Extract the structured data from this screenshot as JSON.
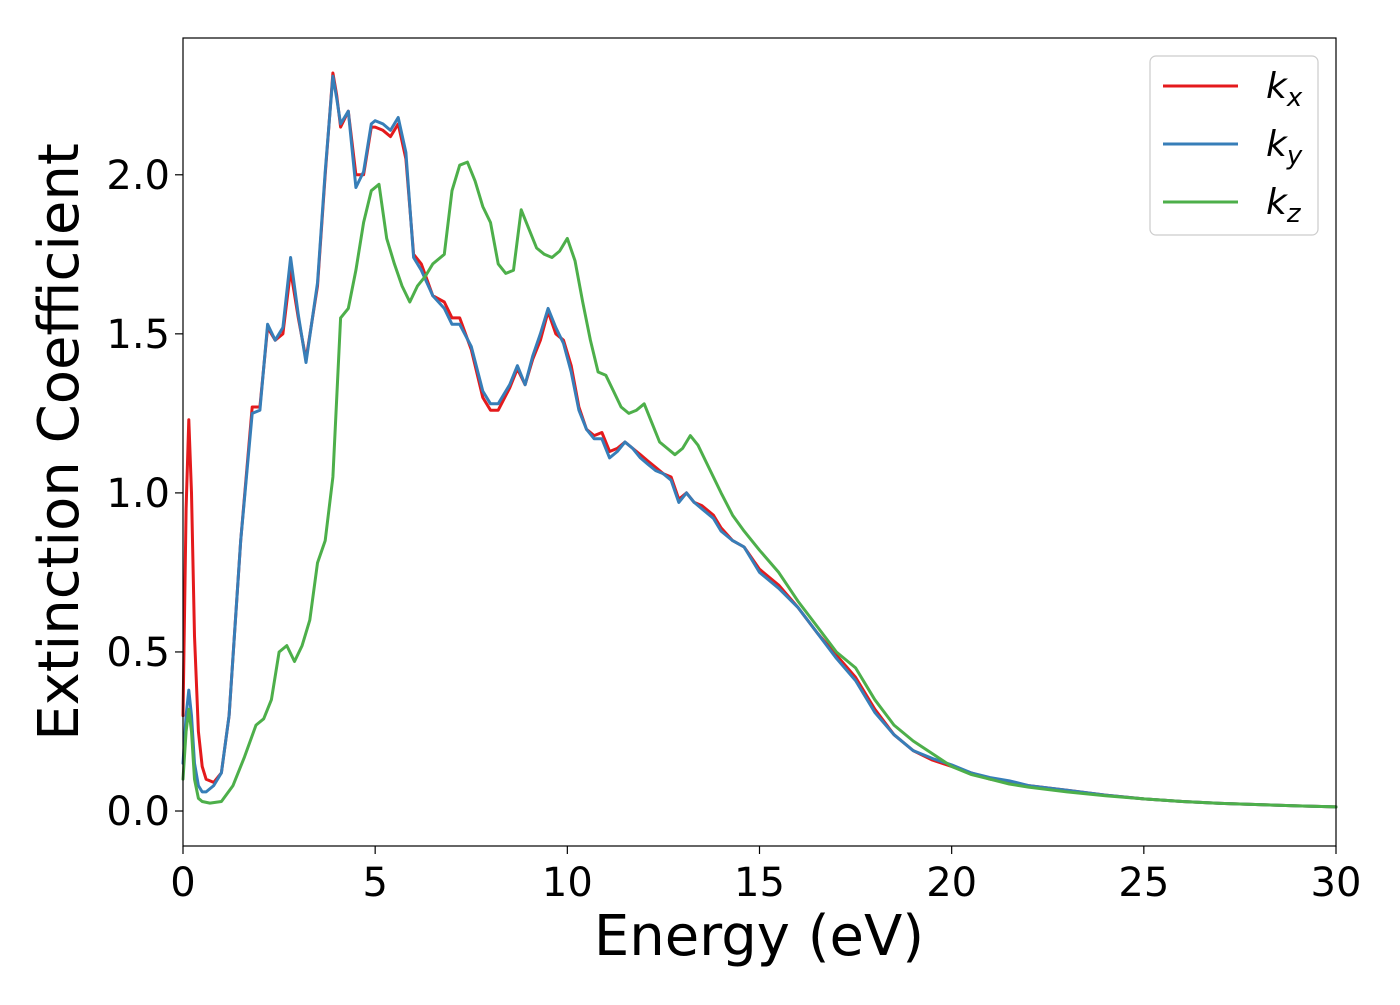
{
  "chart_data": {
    "type": "line",
    "title": "",
    "xlabel": "Energy (eV)",
    "ylabel": "Extinction Coefficient",
    "xlim": [
      0,
      30
    ],
    "ylim": [
      -0.11,
      2.43
    ],
    "xticks": [
      0,
      5,
      10,
      15,
      20,
      25,
      30
    ],
    "xtick_labels": [
      "0",
      "5",
      "10",
      "15",
      "20",
      "25",
      "30"
    ],
    "yticks": [
      0.0,
      0.5,
      1.0,
      1.5,
      2.0
    ],
    "ytick_labels": [
      "0.0",
      "0.5",
      "1.0",
      "1.5",
      "2.0"
    ],
    "grid": false,
    "legend_position": "top-right",
    "series": [
      {
        "name": "kx",
        "legend_main": "k",
        "legend_sub": "x",
        "color": "#e41a1c",
        "x": [
          0.0,
          0.08,
          0.15,
          0.22,
          0.3,
          0.4,
          0.5,
          0.6,
          0.8,
          1.0,
          1.2,
          1.5,
          1.8,
          2.0,
          2.2,
          2.4,
          2.6,
          2.8,
          3.0,
          3.2,
          3.5,
          3.7,
          3.9,
          4.0,
          4.1,
          4.3,
          4.5,
          4.7,
          4.9,
          5.0,
          5.2,
          5.4,
          5.6,
          5.8,
          6.0,
          6.2,
          6.5,
          6.8,
          7.0,
          7.2,
          7.5,
          7.8,
          8.0,
          8.2,
          8.5,
          8.7,
          8.9,
          9.1,
          9.3,
          9.5,
          9.7,
          9.9,
          10.1,
          10.3,
          10.5,
          10.7,
          10.9,
          11.1,
          11.3,
          11.5,
          11.7,
          11.9,
          12.1,
          12.3,
          12.5,
          12.7,
          12.9,
          13.1,
          13.3,
          13.5,
          13.8,
          14.0,
          14.3,
          14.6,
          15.0,
          15.5,
          16.0,
          16.5,
          17.0,
          17.5,
          18.0,
          18.5,
          19.0,
          19.5,
          20.0,
          20.5,
          21.0,
          21.5,
          22.0,
          23.0,
          24.0,
          25.0,
          26.0,
          27.0,
          28.0,
          29.0,
          30.0
        ],
        "y": [
          0.3,
          0.95,
          1.23,
          1.0,
          0.55,
          0.25,
          0.14,
          0.1,
          0.09,
          0.12,
          0.3,
          0.85,
          1.27,
          1.27,
          1.52,
          1.48,
          1.5,
          1.7,
          1.55,
          1.42,
          1.65,
          2.0,
          2.32,
          2.25,
          2.15,
          2.2,
          2.0,
          2.0,
          2.15,
          2.15,
          2.14,
          2.12,
          2.16,
          2.05,
          1.75,
          1.72,
          1.62,
          1.6,
          1.55,
          1.55,
          1.45,
          1.3,
          1.26,
          1.26,
          1.33,
          1.39,
          1.34,
          1.42,
          1.48,
          1.57,
          1.5,
          1.48,
          1.4,
          1.27,
          1.2,
          1.18,
          1.19,
          1.13,
          1.14,
          1.16,
          1.14,
          1.12,
          1.1,
          1.08,
          1.06,
          1.05,
          0.98,
          1.0,
          0.97,
          0.96,
          0.93,
          0.89,
          0.85,
          0.83,
          0.76,
          0.71,
          0.64,
          0.56,
          0.49,
          0.42,
          0.32,
          0.24,
          0.19,
          0.16,
          0.14,
          0.12,
          0.1,
          0.09,
          0.08,
          0.065,
          0.05,
          0.038,
          0.03,
          0.024,
          0.02,
          0.016,
          0.013
        ]
      },
      {
        "name": "ky",
        "legend_main": "k",
        "legend_sub": "y",
        "color": "#377eb8",
        "x": [
          0.0,
          0.08,
          0.15,
          0.22,
          0.3,
          0.4,
          0.5,
          0.6,
          0.8,
          1.0,
          1.2,
          1.5,
          1.8,
          2.0,
          2.2,
          2.4,
          2.6,
          2.8,
          3.0,
          3.2,
          3.5,
          3.7,
          3.9,
          4.0,
          4.1,
          4.3,
          4.5,
          4.7,
          4.9,
          5.0,
          5.2,
          5.4,
          5.6,
          5.8,
          6.0,
          6.2,
          6.5,
          6.8,
          7.0,
          7.2,
          7.5,
          7.8,
          8.0,
          8.2,
          8.5,
          8.7,
          8.9,
          9.1,
          9.3,
          9.5,
          9.7,
          9.9,
          10.1,
          10.3,
          10.5,
          10.7,
          10.9,
          11.1,
          11.3,
          11.5,
          11.7,
          11.9,
          12.1,
          12.3,
          12.5,
          12.7,
          12.9,
          13.1,
          13.3,
          13.5,
          13.8,
          14.0,
          14.3,
          14.6,
          15.0,
          15.5,
          16.0,
          16.5,
          17.0,
          17.5,
          18.0,
          18.5,
          19.0,
          19.5,
          20.0,
          20.5,
          21.0,
          21.5,
          22.0,
          23.0,
          24.0,
          25.0,
          26.0,
          27.0,
          28.0,
          29.0,
          30.0
        ],
        "y": [
          0.15,
          0.3,
          0.38,
          0.3,
          0.15,
          0.08,
          0.06,
          0.06,
          0.08,
          0.12,
          0.3,
          0.85,
          1.25,
          1.26,
          1.53,
          1.48,
          1.52,
          1.74,
          1.56,
          1.41,
          1.66,
          2.01,
          2.31,
          2.24,
          2.16,
          2.2,
          1.96,
          2.01,
          2.16,
          2.17,
          2.16,
          2.14,
          2.18,
          2.07,
          1.74,
          1.7,
          1.62,
          1.58,
          1.53,
          1.53,
          1.46,
          1.32,
          1.28,
          1.28,
          1.34,
          1.4,
          1.34,
          1.43,
          1.5,
          1.58,
          1.52,
          1.47,
          1.38,
          1.26,
          1.2,
          1.17,
          1.17,
          1.11,
          1.13,
          1.16,
          1.14,
          1.11,
          1.09,
          1.07,
          1.06,
          1.04,
          0.97,
          1.0,
          0.97,
          0.95,
          0.92,
          0.88,
          0.85,
          0.83,
          0.75,
          0.7,
          0.64,
          0.56,
          0.48,
          0.41,
          0.31,
          0.24,
          0.19,
          0.165,
          0.145,
          0.12,
          0.105,
          0.095,
          0.08,
          0.065,
          0.05,
          0.038,
          0.03,
          0.024,
          0.02,
          0.016,
          0.013
        ]
      },
      {
        "name": "kz",
        "legend_main": "k",
        "legend_sub": "z",
        "color": "#4daf4a",
        "x": [
          0.0,
          0.08,
          0.15,
          0.22,
          0.3,
          0.4,
          0.5,
          0.7,
          1.0,
          1.3,
          1.6,
          1.9,
          2.1,
          2.3,
          2.5,
          2.7,
          2.9,
          3.1,
          3.3,
          3.5,
          3.7,
          3.9,
          4.1,
          4.3,
          4.5,
          4.7,
          4.9,
          5.1,
          5.3,
          5.5,
          5.7,
          5.9,
          6.1,
          6.3,
          6.5,
          6.8,
          7.0,
          7.2,
          7.4,
          7.6,
          7.8,
          8.0,
          8.2,
          8.4,
          8.6,
          8.8,
          9.0,
          9.2,
          9.4,
          9.6,
          9.8,
          10.0,
          10.2,
          10.4,
          10.6,
          10.8,
          11.0,
          11.2,
          11.4,
          11.6,
          11.8,
          12.0,
          12.2,
          12.4,
          12.6,
          12.8,
          13.0,
          13.2,
          13.4,
          13.6,
          13.8,
          14.0,
          14.3,
          14.6,
          15.0,
          15.5,
          16.0,
          16.5,
          17.0,
          17.5,
          18.0,
          18.5,
          19.0,
          19.5,
          20.0,
          20.5,
          21.0,
          21.5,
          22.0,
          23.0,
          24.0,
          25.0,
          26.0,
          27.0,
          28.0,
          29.0,
          30.0
        ],
        "y": [
          0.1,
          0.25,
          0.32,
          0.25,
          0.1,
          0.04,
          0.03,
          0.025,
          0.03,
          0.08,
          0.17,
          0.27,
          0.29,
          0.35,
          0.5,
          0.52,
          0.47,
          0.52,
          0.6,
          0.78,
          0.85,
          1.05,
          1.55,
          1.58,
          1.7,
          1.85,
          1.95,
          1.97,
          1.8,
          1.72,
          1.65,
          1.6,
          1.65,
          1.68,
          1.72,
          1.75,
          1.95,
          2.03,
          2.04,
          1.98,
          1.9,
          1.85,
          1.72,
          1.69,
          1.7,
          1.89,
          1.83,
          1.77,
          1.75,
          1.74,
          1.76,
          1.8,
          1.73,
          1.6,
          1.48,
          1.38,
          1.37,
          1.32,
          1.27,
          1.25,
          1.26,
          1.28,
          1.22,
          1.16,
          1.14,
          1.12,
          1.14,
          1.18,
          1.15,
          1.1,
          1.05,
          1.0,
          0.93,
          0.88,
          0.82,
          0.75,
          0.66,
          0.58,
          0.5,
          0.45,
          0.35,
          0.27,
          0.22,
          0.18,
          0.14,
          0.115,
          0.1,
          0.085,
          0.075,
          0.06,
          0.048,
          0.038,
          0.03,
          0.024,
          0.02,
          0.016,
          0.013
        ]
      }
    ]
  }
}
